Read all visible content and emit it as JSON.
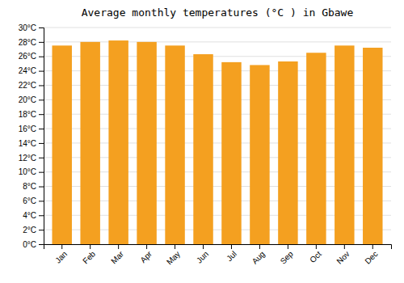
{
  "chart_data": {
    "type": "bar",
    "title": "Average monthly temperatures (°C ) in Gbawe",
    "categories": [
      "Jan",
      "Feb",
      "Mar",
      "Apr",
      "May",
      "Jun",
      "Jul",
      "Aug",
      "Sep",
      "Oct",
      "Nov",
      "Dec"
    ],
    "values": [
      27.5,
      28.0,
      28.2,
      28.0,
      27.5,
      26.3,
      25.2,
      24.8,
      25.3,
      26.5,
      27.5,
      27.2
    ],
    "color": "#F4A020",
    "ylim": [
      0,
      30
    ],
    "yticks": [
      {
        "value": 0,
        "label": "0°C"
      },
      {
        "value": 2,
        "label": "2°C"
      },
      {
        "value": 4,
        "label": "4°C"
      },
      {
        "value": 6,
        "label": "6°C"
      },
      {
        "value": 8,
        "label": "8°C"
      },
      {
        "value": 10,
        "label": "10°C"
      },
      {
        "value": 12,
        "label": "12°C"
      },
      {
        "value": 14,
        "label": "14°C"
      },
      {
        "value": 16,
        "label": "16°C"
      },
      {
        "value": 18,
        "label": "18°C"
      },
      {
        "value": 20,
        "label": "20°C"
      },
      {
        "value": 22,
        "label": "22°C"
      },
      {
        "value": 24,
        "label": "24°C"
      },
      {
        "value": 26,
        "label": "26°C"
      },
      {
        "value": 28,
        "label": "28°C"
      },
      {
        "value": 30,
        "label": "30°C"
      }
    ],
    "grid": true
  }
}
